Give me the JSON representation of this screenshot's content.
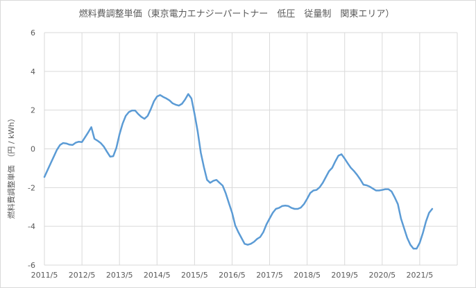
{
  "chart_data": {
    "type": "line",
    "title": "燃料費調整単価（東京電力エナジーパートナー　低圧　従量制　関東エリア）",
    "xlabel": "",
    "ylabel": "燃料費調整単価　（円 / kWh）",
    "ylim": [
      -6,
      6
    ],
    "y_ticks": [
      -6,
      -4,
      -2,
      0,
      2,
      4,
      6
    ],
    "x_tick_labels": [
      "2011/5",
      "2012/5",
      "2013/5",
      "2014/5",
      "2015/5",
      "2016/5",
      "2017/5",
      "2018/5",
      "2019/5",
      "2020/5",
      "2021/5"
    ],
    "grid": "horizontal",
    "line_color": "#5b9bd5",
    "series": [
      {
        "name": "燃料費調整単価",
        "values": [
          -1.45,
          -1.1,
          -0.75,
          -0.4,
          -0.05,
          0.2,
          0.3,
          0.28,
          0.22,
          0.2,
          0.32,
          0.37,
          0.35,
          0.6,
          0.85,
          1.12,
          0.52,
          0.42,
          0.3,
          0.12,
          -0.15,
          -0.4,
          -0.38,
          0.05,
          0.75,
          1.3,
          1.7,
          1.9,
          1.98,
          1.98,
          1.8,
          1.65,
          1.55,
          1.7,
          2.05,
          2.45,
          2.7,
          2.78,
          2.68,
          2.6,
          2.5,
          2.35,
          2.28,
          2.23,
          2.33,
          2.55,
          2.83,
          2.6,
          1.8,
          0.9,
          -0.2,
          -0.95,
          -1.6,
          -1.75,
          -1.65,
          -1.6,
          -1.75,
          -1.9,
          -2.3,
          -2.8,
          -3.3,
          -3.95,
          -4.3,
          -4.6,
          -4.9,
          -4.95,
          -4.9,
          -4.8,
          -4.65,
          -4.55,
          -4.3,
          -3.9,
          -3.6,
          -3.3,
          -3.1,
          -3.05,
          -2.95,
          -2.93,
          -2.95,
          -3.05,
          -3.1,
          -3.1,
          -3.03,
          -2.85,
          -2.58,
          -2.28,
          -2.15,
          -2.12,
          -1.98,
          -1.75,
          -1.45,
          -1.15,
          -0.98,
          -0.65,
          -0.35,
          -0.28,
          -0.5,
          -0.75,
          -0.98,
          -1.15,
          -1.35,
          -1.58,
          -1.85,
          -1.88,
          -1.95,
          -2.05,
          -2.15,
          -2.15,
          -2.12,
          -2.08,
          -2.08,
          -2.2,
          -2.5,
          -2.85,
          -3.6,
          -4.1,
          -4.6,
          -4.95,
          -5.15,
          -5.15,
          -4.85,
          -4.35,
          -3.75,
          -3.3,
          -3.1
        ]
      }
    ]
  }
}
